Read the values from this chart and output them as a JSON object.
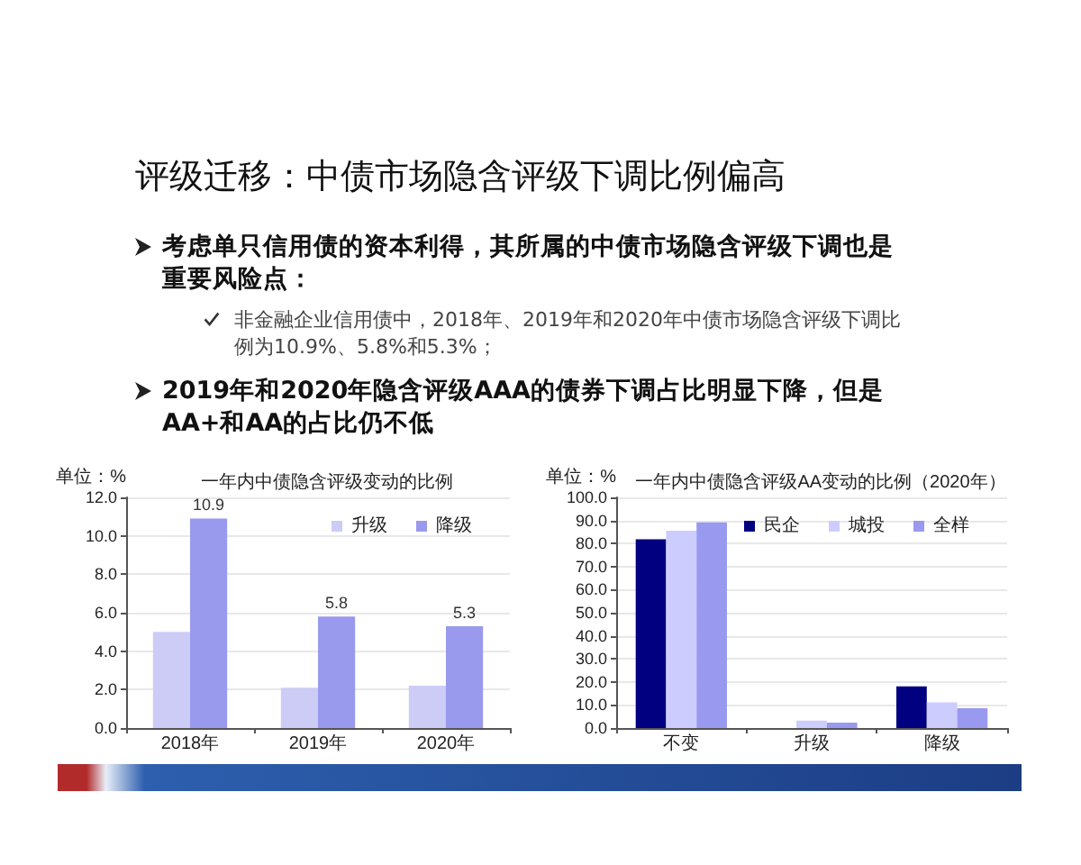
{
  "chart_data": [
    {
      "type": "other",
      "title": "评级迁移：中债市场隐含评级下调比例偏高",
      "annotations": [
        "考虑单只信用债的资本利得，其所属的中债市场隐含评级下调也是重要风险点：",
        "非金融企业信用债中，2018年、2019年和2020年中债市场隐含评级下调比例为10.9%、5.8%和5.3%；",
        "2019年和2020年隐含评级AAA的债券下调占比明显下降，但是AA+和AA的占比仍不低"
      ]
    },
    {
      "type": "bar",
      "title": "一年内中债隐含评级变动的比例",
      "ylabel": "单位：%",
      "categories": [
        "2018年",
        "2019年",
        "2020年"
      ],
      "series": [
        {
          "name": "升级",
          "color": "#ccccf6",
          "values": [
            5.0,
            2.1,
            2.2
          ]
        },
        {
          "name": "降级",
          "color": "#9999ee",
          "values": [
            10.9,
            5.8,
            5.3
          ],
          "value_labels": [
            "10.9",
            "5.8",
            "5.3"
          ]
        }
      ],
      "ylim": [
        0,
        12
      ],
      "yticks": [
        {
          "value": 0,
          "label": "0.0"
        },
        {
          "value": 2,
          "label": "2.0"
        },
        {
          "value": 4,
          "label": "4.0"
        },
        {
          "value": 6,
          "label": "6.0"
        },
        {
          "value": 8,
          "label": "8.0"
        },
        {
          "value": 10,
          "label": "10.0"
        },
        {
          "value": 12,
          "label": "12.0"
        }
      ],
      "grid": "y",
      "legend": "top right"
    },
    {
      "type": "bar",
      "title": "一年内中债隐含评级AA变动的比例（2020年）",
      "ylabel": "单位：%",
      "categories": [
        "不变",
        "升级",
        "降级"
      ],
      "series": [
        {
          "name": "民企",
          "color": "#000080",
          "values": [
            81.8,
            0,
            18.1
          ]
        },
        {
          "name": "城投",
          "color": "#ccccff",
          "values": [
            85.5,
            3.2,
            11.1
          ]
        },
        {
          "name": "全样",
          "color": "#9999f0",
          "values": [
            89.2,
            2.3,
            8.6
          ]
        }
      ],
      "ylim": [
        0,
        100
      ],
      "yticks": [
        {
          "value": 0,
          "label": "0.0"
        },
        {
          "value": 10,
          "label": "10.0"
        },
        {
          "value": 20,
          "label": "20.0"
        },
        {
          "value": 30,
          "label": "30.0"
        },
        {
          "value": 40,
          "label": "40.0"
        },
        {
          "value": 50,
          "label": "50.0"
        },
        {
          "value": 60,
          "label": "60.0"
        },
        {
          "value": 70,
          "label": "70.0"
        },
        {
          "value": 80,
          "label": "80.0"
        },
        {
          "value": 90,
          "label": "90.0"
        },
        {
          "value": 100,
          "label": "100.0"
        }
      ],
      "grid": "y",
      "legend": "top right"
    }
  ]
}
